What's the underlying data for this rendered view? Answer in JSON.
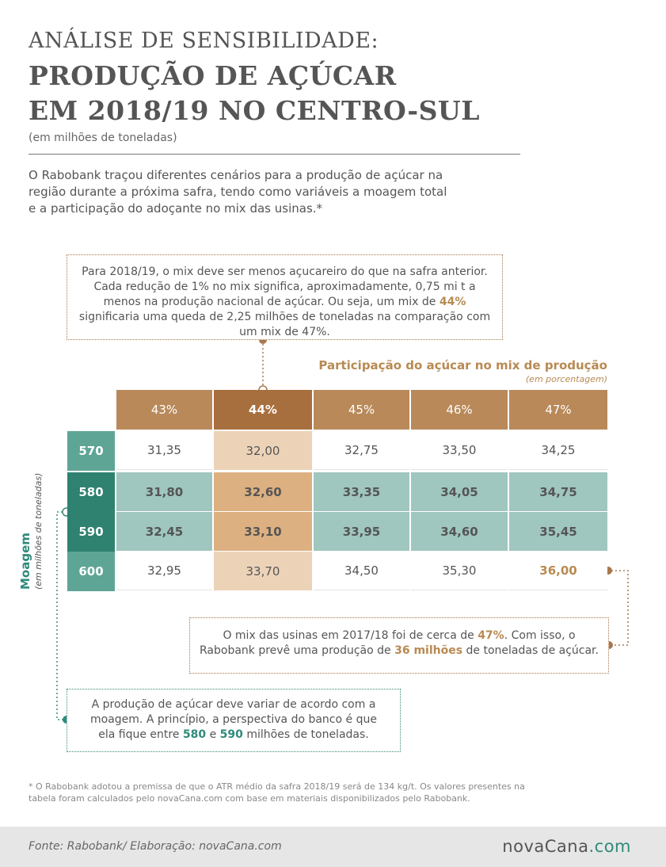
{
  "header": {
    "title_line1": "ANÁLISE DE SENSIBILIDADE:",
    "title_line2": "PRODUÇÃO DE AÇÚCAR",
    "title_line3": "EM 2018/19 NO CENTRO-SUL",
    "subtitle": "(em milhões de toneladas)",
    "intro": "O Rabobank traçou diferentes cenários para a produção de açúcar na região durante a próxima safra, tendo como variáveis a moagem total e a participação do adoçante no mix das usinas.*"
  },
  "callouts": {
    "mix_text_before": "Para 2018/19, o mix deve ser menos açucareiro do que na safra anterior. Cada redução de 1% no mix significa, aproximadamente, 0,75 mi t a menos na produção nacional de açúcar. Ou seja, um mix de ",
    "mix_highlight": "44%",
    "mix_text_after": " significaria uma queda de 2,25 milhões de toneladas na comparação com um mix de 47%.",
    "prev_text_1": "O mix das usinas em 2017/18 foi de cerca de ",
    "prev_highlight_1": "47%",
    "prev_text_2": ". Com isso, o Rabobank prevê uma produção de ",
    "prev_highlight_2": "36 milhões",
    "prev_text_3": " de toneladas de açúcar.",
    "moagem_text_1": "A produção de açúcar deve variar de acordo com a moagem. A princípio, a perspectiva do banco é que ela fique entre ",
    "moagem_highlight_1": "580",
    "moagem_text_2": " e ",
    "moagem_highlight_2": "590",
    "moagem_text_3": " milhões de toneladas."
  },
  "chart_data": {
    "type": "table",
    "column_axis_title": "Participação do açúcar no mix de produção",
    "column_axis_unit": "(em porcentagem)",
    "row_axis_title": "Moagem",
    "row_axis_unit": "(em milhões de toneladas)",
    "columns": [
      "43%",
      "44%",
      "45%",
      "46%",
      "47%"
    ],
    "rows": [
      "570",
      "580",
      "590",
      "600"
    ],
    "values": [
      [
        "31,35",
        "32,00",
        "32,75",
        "33,50",
        "34,25"
      ],
      [
        "31,80",
        "32,60",
        "33,35",
        "34,05",
        "34,75"
      ],
      [
        "32,45",
        "33,10",
        "33,95",
        "34,60",
        "35,45"
      ],
      [
        "32,95",
        "33,70",
        "34,50",
        "35,30",
        "36,00"
      ]
    ],
    "highlighted_column": "44%",
    "highlighted_rows": [
      "580",
      "590"
    ],
    "highlighted_cell": [
      "600",
      "47%"
    ]
  },
  "colors": {
    "col_header": "#b98959",
    "col_header_highlight": "#a86f3e",
    "row_header_light": "#5fa595",
    "row_header_dark": "#2f8270",
    "cell_teal": "#9fc6bf",
    "cell_tan_light": "#ecd3b8",
    "cell_tan_dark": "#ddb081",
    "cell_white": "#ffffff",
    "accent_gold": "#b88a52",
    "accent_teal": "#2f8a7a"
  },
  "footnote": "* O Rabobank adotou a premissa de que o ATR médio da safra 2018/19 será de 134 kg/t. Os valores presentes na tabela foram calculados pelo novaCana.com com base em materiais disponibilizados pelo Rabobank.",
  "footer": {
    "source": "Fonte: Rabobank/ Elaboração: novaCana.com",
    "logo_main": "novaCana",
    "logo_suffix": ".com"
  }
}
